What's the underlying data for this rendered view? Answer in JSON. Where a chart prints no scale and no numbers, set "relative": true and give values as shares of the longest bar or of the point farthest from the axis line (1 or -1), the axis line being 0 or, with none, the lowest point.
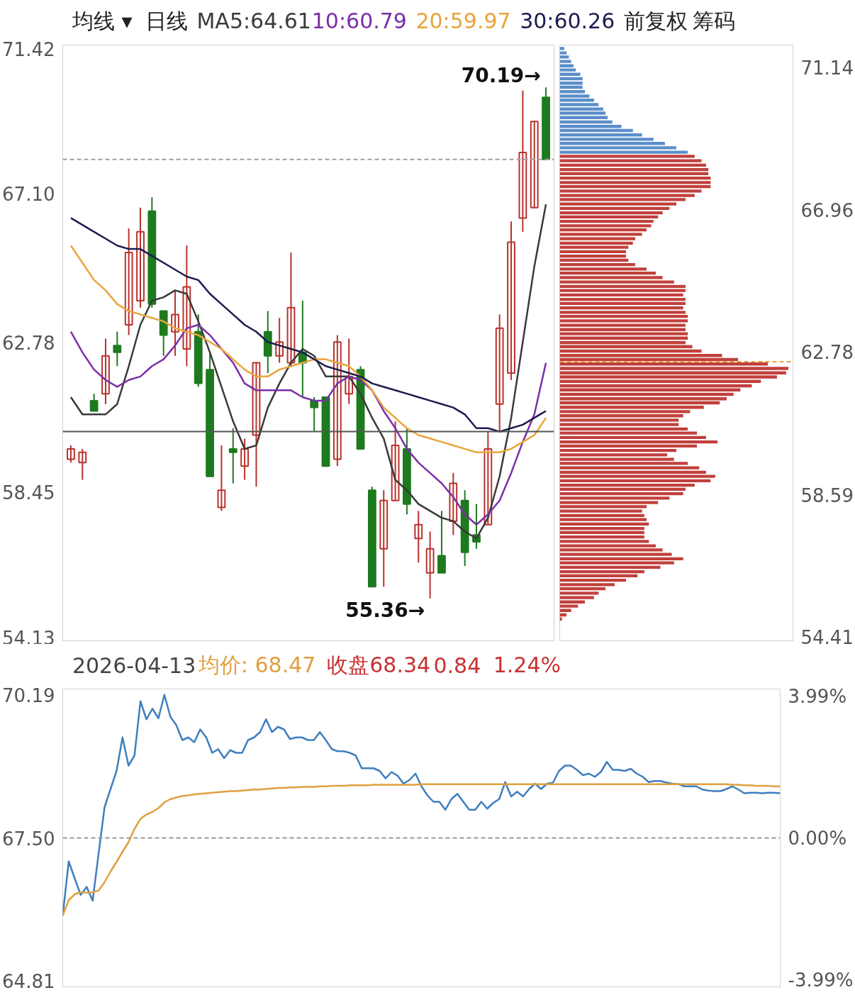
{
  "chart_data": [
    {
      "type": "candlestick",
      "categories": [
        null,
        null,
        null,
        null,
        null,
        null,
        null,
        null,
        null,
        null,
        null,
        null,
        null,
        null,
        null,
        null,
        null,
        null,
        null,
        null,
        null,
        null,
        null,
        null,
        null,
        null,
        null,
        null,
        null,
        null,
        null,
        null,
        null,
        null,
        null,
        null,
        null,
        null,
        null,
        null,
        null,
        null
      ],
      "ohlc": [
        [
          59.4,
          59.8,
          59.3,
          59.7
        ],
        [
          59.3,
          59.7,
          58.8,
          59.6
        ],
        [
          61.1,
          61.3,
          60.8,
          60.8
        ],
        [
          61.3,
          62.9,
          61.0,
          62.4
        ],
        [
          62.7,
          63.1,
          62.1,
          62.5
        ],
        [
          63.3,
          66.1,
          63.0,
          65.4
        ],
        [
          64.0,
          66.7,
          63.8,
          66.0
        ],
        [
          66.6,
          67.0,
          63.8,
          63.9
        ],
        [
          63.7,
          63.7,
          62.4,
          63.0
        ],
        [
          63.1,
          64.3,
          62.4,
          63.6
        ],
        [
          62.6,
          65.6,
          62.1,
          64.4
        ],
        [
          63.1,
          63.6,
          61.5,
          61.6
        ],
        [
          62.0,
          62.5,
          58.9,
          58.9
        ],
        [
          58.0,
          59.8,
          57.9,
          58.5
        ],
        [
          59.7,
          60.3,
          58.7,
          59.6
        ],
        [
          59.2,
          60.0,
          58.8,
          59.7
        ],
        [
          60.1,
          62.2,
          58.6,
          62.2
        ],
        [
          63.1,
          63.7,
          61.9,
          62.4
        ],
        [
          62.4,
          63.5,
          62.2,
          62.8
        ],
        [
          62.2,
          65.4,
          62.1,
          63.8
        ],
        [
          62.5,
          64.0,
          61.2,
          62.2
        ],
        [
          61.1,
          61.2,
          60.2,
          60.9
        ],
        [
          61.2,
          61.2,
          59.2,
          59.2
        ],
        [
          59.4,
          63.0,
          59.2,
          62.8
        ],
        [
          61.3,
          62.9,
          61.0,
          61.8
        ],
        [
          62.0,
          62.1,
          59.7,
          59.7
        ],
        [
          58.5,
          58.6,
          55.7,
          55.7
        ],
        [
          56.8,
          58.5,
          55.7,
          58.2
        ],
        [
          58.2,
          60.5,
          58.2,
          59.8
        ],
        [
          59.7,
          60.3,
          57.8,
          58.1
        ],
        [
          57.1,
          57.9,
          56.4,
          57.5
        ],
        [
          56.1,
          57.3,
          55.36,
          56.8
        ],
        [
          56.6,
          57.9,
          56.1,
          56.1
        ],
        [
          57.6,
          59.0,
          57.2,
          58.7
        ],
        [
          58.2,
          58.5,
          56.3,
          56.7
        ],
        [
          57.2,
          58.1,
          56.8,
          57.0
        ],
        [
          57.5,
          60.2,
          57.5,
          59.7
        ],
        [
          61.0,
          63.6,
          60.2,
          63.2
        ],
        [
          61.9,
          66.3,
          61.7,
          65.7
        ],
        [
          66.4,
          70.1,
          66.0,
          68.3
        ],
        [
          66.7,
          69.2,
          66.7,
          69.2
        ],
        [
          69.9,
          70.19,
          68.1,
          68.1
        ]
      ],
      "series": [
        {
          "name": "MA5:64.61",
          "type": "line",
          "color": "#3a3a3a",
          "values": [
            61.2,
            60.7,
            60.7,
            60.7,
            61.0,
            62.1,
            63.3,
            64.0,
            64.1,
            64.3,
            64.2,
            63.4,
            62.5,
            61.5,
            60.5,
            59.7,
            59.8,
            60.9,
            61.6,
            62.2,
            62.6,
            62.4,
            61.8,
            61.8,
            61.8,
            61.3,
            60.6,
            60.0,
            58.8,
            58.5,
            58.1,
            57.9,
            57.7,
            57.6,
            57.3,
            57.1,
            57.7,
            58.9,
            60.6,
            62.8,
            65.0,
            66.8
          ]
        },
        {
          "name": "10:60.79",
          "type": "line",
          "color": "#7b2fa8",
          "values": [
            63.1,
            62.5,
            62.0,
            61.7,
            61.5,
            61.7,
            61.8,
            62.1,
            62.3,
            62.7,
            63.2,
            63.3,
            63.0,
            62.6,
            62.2,
            61.6,
            61.4,
            61.4,
            61.4,
            61.4,
            61.2,
            61.1,
            61.1,
            61.6,
            61.8,
            61.7,
            61.4,
            60.8,
            60.3,
            59.7,
            59.3,
            59.0,
            58.7,
            58.3,
            57.8,
            57.5,
            57.8,
            58.2,
            59.0,
            59.9,
            60.7,
            62.2
          ]
        },
        {
          "name": "20:59.97",
          "type": "line",
          "color": "#e8a53c",
          "values": [
            65.6,
            65.1,
            64.6,
            64.3,
            63.9,
            63.7,
            63.6,
            63.5,
            63.4,
            63.2,
            63.1,
            63.0,
            62.8,
            62.6,
            62.3,
            62.0,
            61.8,
            61.8,
            62.0,
            62.1,
            62.2,
            62.3,
            62.3,
            62.2,
            62.1,
            61.8,
            61.4,
            60.9,
            60.6,
            60.3,
            60.1,
            60.0,
            59.9,
            59.8,
            59.7,
            59.6,
            59.6,
            59.6,
            59.7,
            59.9,
            60.1,
            60.6
          ]
        },
        {
          "name": "30:60.26",
          "type": "line",
          "color": "#1c1c50",
          "values": [
            66.4,
            66.2,
            66.0,
            65.8,
            65.6,
            65.5,
            65.5,
            65.3,
            65.1,
            64.9,
            64.7,
            64.6,
            64.2,
            63.9,
            63.6,
            63.3,
            63.1,
            62.8,
            62.7,
            62.6,
            62.5,
            62.3,
            62.1,
            62.0,
            61.9,
            61.8,
            61.6,
            61.5,
            61.4,
            61.3,
            61.2,
            61.1,
            61.0,
            60.9,
            60.7,
            60.3,
            60.3,
            60.2,
            60.3,
            60.4,
            60.6,
            60.8
          ]
        }
      ],
      "ylim": [
        54.13,
        71.42
      ],
      "yticks": [
        71.42,
        {
          "value": 67.1,
          "label": "67.10"
        },
        62.78,
        58.45,
        54.13
      ],
      "ref_lines": [
        {
          "axis": "y",
          "value": 68.1,
          "line_style": "dashed",
          "color": "#a0a0a0"
        },
        {
          "axis": "y",
          "value": 60.2,
          "color": "#555555"
        }
      ],
      "annotations": [
        "均线 ▾",
        "日线",
        "前复权",
        "筹码",
        "70.19→",
        "55.36→"
      ],
      "legend": "top",
      "grid": false,
      "tick_labels": "y",
      "line_style": "solid"
    },
    {
      "type": "bar",
      "orientation": "horizontal",
      "relative": true,
      "series": [
        {
          "color": "#5b8ec9",
          "x": [
            71.7,
            71.57,
            71.45,
            71.32,
            71.19,
            71.07,
            70.94,
            70.81,
            70.68,
            70.56,
            70.43,
            70.3,
            70.18,
            70.05,
            69.92,
            69.8,
            69.67,
            69.54,
            69.41,
            69.29,
            69.16,
            69.03,
            68.91,
            68.78,
            68.65
          ],
          "values": [
            0.02,
            0.03,
            0.04,
            0.05,
            0.06,
            0.07,
            0.09,
            0.1,
            0.1,
            0.1,
            0.11,
            0.13,
            0.15,
            0.17,
            0.19,
            0.2,
            0.21,
            0.23,
            0.27,
            0.32,
            0.36,
            0.41,
            0.46,
            0.51,
            0.56
          ]
        },
        {
          "color": "#c0403c",
          "x": [
            68.53,
            68.4,
            68.27,
            68.14,
            68.02,
            67.89,
            67.76,
            67.64,
            67.51,
            67.38,
            67.26,
            67.13,
            67.0,
            66.87,
            66.75,
            66.62,
            66.49,
            66.37,
            66.24,
            66.11,
            65.98,
            65.86,
            65.73,
            65.6,
            65.48,
            65.35,
            65.22,
            65.1,
            64.97,
            64.84,
            64.71,
            64.59,
            64.46,
            64.33,
            64.21,
            64.08,
            63.95,
            63.83,
            63.7,
            63.57,
            63.44,
            63.32,
            63.19,
            63.06,
            62.94,
            62.81,
            62.68,
            62.56,
            62.43,
            62.3,
            62.17,
            62.05,
            61.92,
            61.79,
            61.67,
            61.54,
            61.41,
            61.29,
            61.16,
            61.03,
            60.91,
            60.78,
            60.65,
            60.52,
            60.4,
            60.27,
            60.14,
            60.02,
            59.89,
            59.76,
            59.63,
            59.51,
            59.38,
            59.25,
            59.13,
            59.0,
            58.87,
            58.75,
            58.62,
            58.49,
            58.36,
            58.24,
            58.11,
            57.98,
            57.86,
            57.73,
            57.6,
            57.48,
            57.35,
            57.22,
            57.09,
            56.97,
            56.84,
            56.71,
            56.59,
            56.46,
            56.33,
            56.21,
            56.08,
            55.95,
            55.83,
            55.7,
            55.57,
            55.44,
            55.32,
            55.19,
            55.06,
            54.94
          ],
          "values": [
            0.59,
            0.62,
            0.64,
            0.65,
            0.65,
            0.66,
            0.66,
            0.66,
            0.62,
            0.59,
            0.55,
            0.51,
            0.48,
            0.45,
            0.43,
            0.41,
            0.4,
            0.38,
            0.36,
            0.33,
            0.32,
            0.3,
            0.29,
            0.29,
            0.3,
            0.33,
            0.38,
            0.42,
            0.45,
            0.5,
            0.55,
            0.55,
            0.54,
            0.55,
            0.55,
            0.54,
            0.55,
            0.56,
            0.56,
            0.55,
            0.55,
            0.56,
            0.56,
            0.55,
            0.58,
            0.62,
            0.71,
            0.78,
            0.91,
            1.0,
            0.99,
            0.95,
            0.88,
            0.84,
            0.79,
            0.76,
            0.73,
            0.7,
            0.63,
            0.57,
            0.54,
            0.52,
            0.52,
            0.56,
            0.6,
            0.64,
            0.69,
            0.6,
            0.51,
            0.47,
            0.5,
            0.56,
            0.61,
            0.64,
            0.68,
            0.66,
            0.59,
            0.55,
            0.54,
            0.48,
            0.43,
            0.38,
            0.36,
            0.37,
            0.38,
            0.39,
            0.37,
            0.37,
            0.37,
            0.39,
            0.42,
            0.45,
            0.49,
            0.54,
            0.5,
            0.44,
            0.37,
            0.34,
            0.29,
            0.24,
            0.2,
            0.17,
            0.15,
            0.11,
            0.08,
            0.05,
            0.03,
            0.01
          ]
        }
      ],
      "ylim": [
        54.3,
        71.8
      ],
      "yticks": [
        71.14,
        66.96,
        62.78,
        58.59,
        54.41
      ],
      "ref_lines": [
        {
          "axis": "y",
          "value": 62.5,
          "line_style": "dashed",
          "color": "#e8a53c"
        }
      ],
      "grid": false,
      "tick_labels": "y"
    },
    {
      "type": "line",
      "title": "2026-04-13",
      "categories": [
        null,
        null,
        null,
        null,
        null,
        null,
        null,
        null,
        null,
        null,
        null,
        null,
        null,
        null,
        null,
        null,
        null,
        null,
        null,
        null,
        null,
        null,
        null,
        null,
        null,
        null,
        null,
        null,
        null,
        null,
        null,
        null,
        null,
        null,
        null,
        null,
        null,
        null,
        null,
        null,
        null,
        null,
        null,
        null,
        null,
        null,
        null,
        null,
        null,
        null,
        null,
        null,
        null,
        null,
        null,
        null,
        null,
        null,
        null,
        null,
        null,
        null,
        null,
        null,
        null,
        null,
        null,
        null,
        null,
        null,
        null,
        null,
        null,
        null,
        null,
        null,
        null,
        null,
        null,
        null,
        null,
        null,
        null,
        null,
        null,
        null,
        null,
        null,
        null,
        null,
        null,
        null,
        null,
        null,
        null,
        null,
        null,
        null,
        null,
        null,
        null,
        null,
        null,
        null,
        null,
        null,
        null,
        null,
        null,
        null,
        null,
        null,
        null,
        null,
        null,
        null,
        null,
        null,
        null,
        null,
        null
      ],
      "series": [
        {
          "type": "line",
          "color": "#3f7fbf",
          "values": [
            66.04,
            67.06,
            66.74,
            66.43,
            66.58,
            66.32,
            67.21,
            68.08,
            68.42,
            68.76,
            69.39,
            68.86,
            69.05,
            70.07,
            69.73,
            69.93,
            69.75,
            70.19,
            69.78,
            69.62,
            69.34,
            69.39,
            69.3,
            69.54,
            69.39,
            69.1,
            69.17,
            69.0,
            69.15,
            69.1,
            69.1,
            69.34,
            69.39,
            69.49,
            69.73,
            69.49,
            69.59,
            69.54,
            69.36,
            69.39,
            69.39,
            69.34,
            69.34,
            69.49,
            69.34,
            69.17,
            69.13,
            69.13,
            69.1,
            69.05,
            68.81,
            68.81,
            68.81,
            68.76,
            68.62,
            68.74,
            68.67,
            68.52,
            68.59,
            68.71,
            68.47,
            68.3,
            68.18,
            68.18,
            68.03,
            68.23,
            68.33,
            68.18,
            68.03,
            68.03,
            68.18,
            68.05,
            68.16,
            68.23,
            68.55,
            68.28,
            68.37,
            68.28,
            68.42,
            68.52,
            68.42,
            68.52,
            68.54,
            68.76,
            68.86,
            68.86,
            68.78,
            68.68,
            68.71,
            68.65,
            68.74,
            68.93,
            68.78,
            68.78,
            68.76,
            68.8,
            68.71,
            68.65,
            68.55,
            68.57,
            68.57,
            68.54,
            68.52,
            68.51,
            68.47,
            68.47,
            68.47,
            68.41,
            68.39,
            68.38,
            68.38,
            68.42,
            68.47,
            68.41,
            68.34,
            68.35,
            68.35,
            68.34,
            68.35,
            68.35,
            68.34
          ]
        },
        {
          "name": "均价: 68.47",
          "type": "line",
          "color": "#e0a040",
          "values": [
            66.04,
            66.33,
            66.44,
            66.48,
            66.47,
            66.48,
            66.51,
            66.67,
            66.87,
            67.05,
            67.24,
            67.42,
            67.67,
            67.86,
            67.94,
            67.99,
            68.06,
            68.17,
            68.23,
            68.26,
            68.29,
            68.3,
            68.32,
            68.33,
            68.34,
            68.35,
            68.36,
            68.37,
            68.38,
            68.38,
            68.39,
            68.4,
            68.41,
            68.41,
            68.42,
            68.43,
            68.44,
            68.44,
            68.45,
            68.45,
            68.46,
            68.46,
            68.46,
            68.47,
            68.47,
            68.48,
            68.48,
            68.48,
            68.49,
            68.49,
            68.49,
            68.49,
            68.5,
            68.5,
            68.5,
            68.5,
            68.5,
            68.5,
            68.5,
            68.5,
            68.51,
            68.51,
            68.51,
            68.51,
            68.51,
            68.51,
            68.51,
            68.51,
            68.51,
            68.51,
            68.51,
            68.51,
            68.51,
            68.51,
            68.51,
            68.51,
            68.51,
            68.51,
            68.51,
            68.51,
            68.51,
            68.51,
            68.51,
            68.51,
            68.51,
            68.51,
            68.51,
            68.51,
            68.51,
            68.51,
            68.51,
            68.51,
            68.51,
            68.51,
            68.51,
            68.51,
            68.51,
            68.51,
            68.51,
            68.51,
            68.51,
            68.51,
            68.51,
            68.51,
            68.51,
            68.51,
            68.51,
            68.51,
            68.51,
            68.51,
            68.51,
            68.51,
            68.5,
            68.5,
            68.49,
            68.49,
            68.48,
            68.48,
            68.48,
            68.47,
            68.47
          ]
        }
      ],
      "ylim": [
        64.7,
        70.3
      ],
      "yticks": [
        70.19,
        {
          "value": 67.5,
          "label": "67.50"
        },
        64.81
      ],
      "y2lim": [
        -4.15,
        4.15
      ],
      "y2ticks": [
        {
          "value": 3.99,
          "label": "3.99%"
        },
        {
          "value": 0,
          "label": "0.00%"
        },
        {
          "value": -3.99,
          "label": "-3.99%"
        }
      ],
      "ref_lines": [
        {
          "axis": "y",
          "value": 67.5,
          "line_style": "dashed",
          "color": "#999999"
        }
      ],
      "annotations": [
        "收盘68.34",
        "0.84",
        "1.24%"
      ],
      "grid": false,
      "tick_labels": "y"
    }
  ]
}
